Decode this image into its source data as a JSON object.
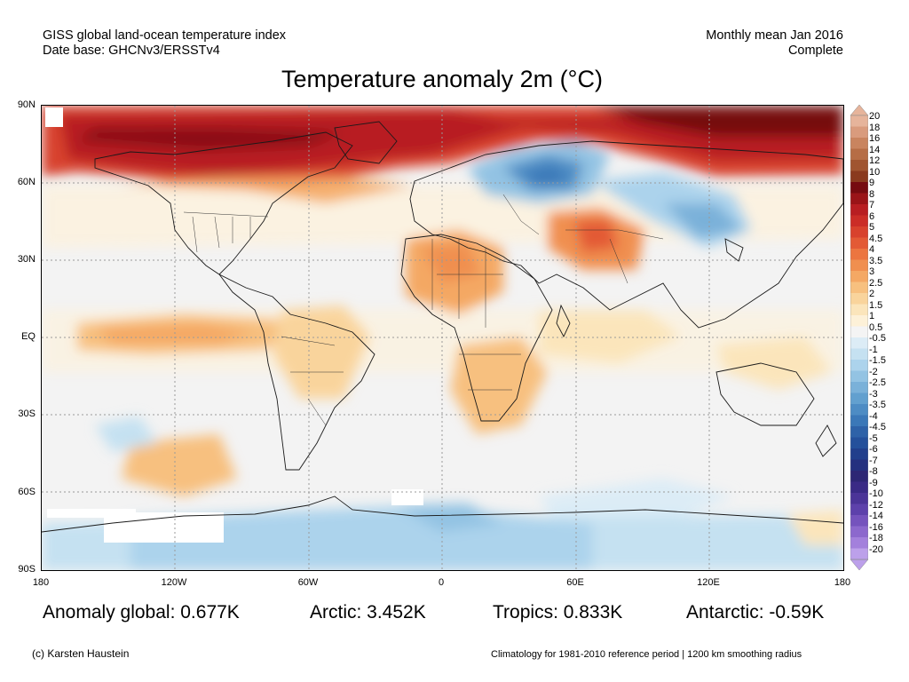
{
  "header": {
    "left_line1": "GISS global land-ocean temperature index",
    "left_line2": "Date base: GHCNv3/ERSSTv4",
    "right_line1": "Monthly mean Jan 2016",
    "right_line2": "Complete"
  },
  "title": "Temperature anomaly 2m (°C)",
  "axes": {
    "lat_labels": [
      "90N",
      "60N",
      "30N",
      "EQ",
      "30S",
      "60S",
      "90S"
    ],
    "lon_labels": [
      "180",
      "120W",
      "60W",
      "0",
      "60E",
      "120E",
      "180"
    ]
  },
  "colorbar": {
    "labels": [
      "20",
      "18",
      "16",
      "14",
      "12",
      "10",
      "9",
      "8",
      "7",
      "6",
      "5",
      "4.5",
      "4",
      "3.5",
      "3",
      "2.5",
      "2",
      "1.5",
      "1",
      "0.5",
      "-0.5",
      "-1",
      "-1.5",
      "-2",
      "-2.5",
      "-3",
      "-3.5",
      "-4",
      "-4.5",
      "-5",
      "-6",
      "-7",
      "-8",
      "-9",
      "-10",
      "-12",
      "-14",
      "-16",
      "-18",
      "-20"
    ],
    "colors": [
      "#e6b49b",
      "#d99b7d",
      "#c9845f",
      "#b66d45",
      "#a05530",
      "#8a3a1e",
      "#760b10",
      "#9a1418",
      "#b81e22",
      "#cb2d27",
      "#d8422d",
      "#e35a35",
      "#ec7540",
      "#f08f4f",
      "#f4a864",
      "#f7c07f",
      "#f9d49c",
      "#fbe5bb",
      "#fdf1d8",
      "#f4f4f4",
      "#dcecf6",
      "#c5e1f1",
      "#acd3ec",
      "#93c3e3",
      "#7ab1d9",
      "#62a0cf",
      "#4d8cc4",
      "#3b78b8",
      "#2e62a8",
      "#24509b",
      "#213f8c",
      "#24307f",
      "#2d2675",
      "#3a2a86",
      "#4b3498",
      "#5d41ab",
      "#7553bd",
      "#8c68cd",
      "#a380dc",
      "#bca0ea"
    ]
  },
  "stats": {
    "global": "Anomaly global: 0.677K",
    "arctic": "Arctic: 3.452K",
    "tropics": "Tropics: 0.833K",
    "antarctic": "Antarctic: -0.59K"
  },
  "footer": {
    "credit": "(c) Karsten Haustein",
    "note": "Climatology for 1981-2010 reference period | 1200 km smoothing radius"
  }
}
